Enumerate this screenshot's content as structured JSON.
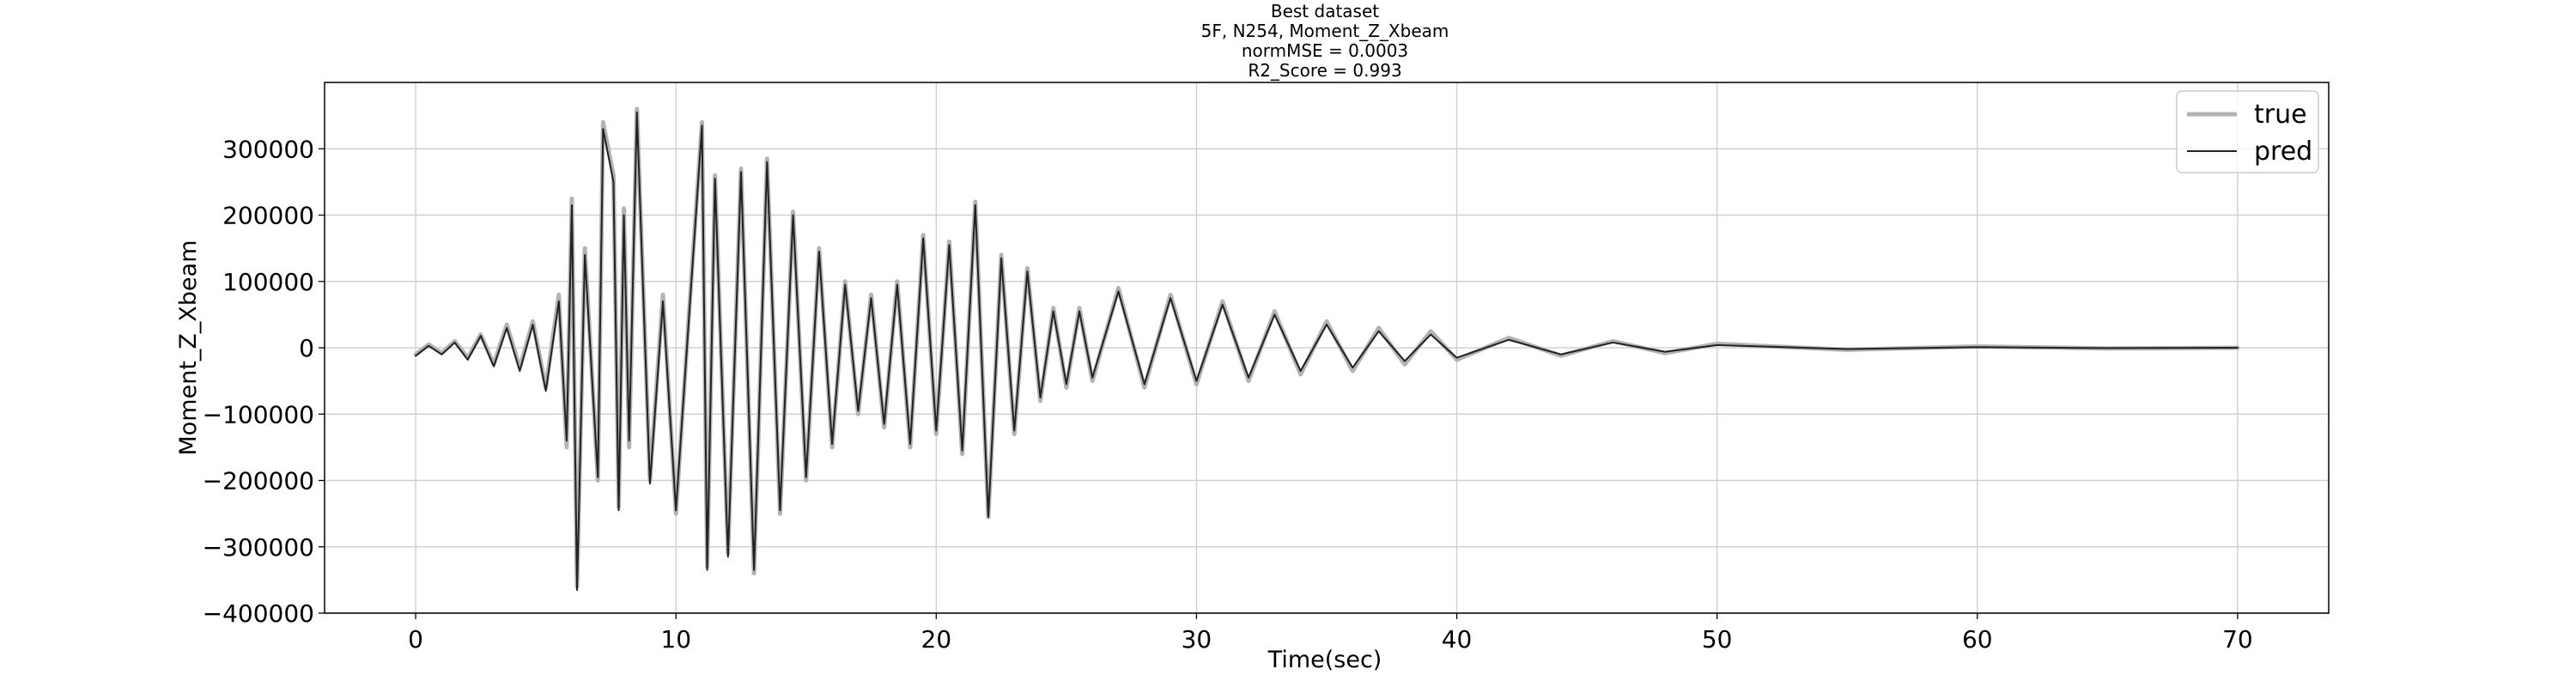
{
  "chart_data": {
    "type": "line",
    "title_lines": [
      "Best dataset",
      "5F, N254, Moment_Z_Xbeam",
      "normMSE = 0.0003",
      "R2_Score = 0.993"
    ],
    "xlabel": "Time(sec)",
    "ylabel": "Moment_Z_Xbeam",
    "xlim": [
      -3.5,
      73.5
    ],
    "ylim": [
      -400000,
      400000
    ],
    "xticks": [
      0,
      10,
      20,
      30,
      40,
      50,
      60,
      70
    ],
    "yticks": [
      -400000,
      -300000,
      -200000,
      -100000,
      0,
      100000,
      200000,
      300000
    ],
    "ytick_labels": [
      "−400000",
      "−300000",
      "−200000",
      "−100000",
      "0",
      "100000",
      "200000",
      "300000"
    ],
    "grid": true,
    "legend_position": "upper right",
    "series": [
      {
        "name": "true",
        "color": "#b3b3b3",
        "style": "thick",
        "x": [
          0,
          0.5,
          1,
          1.5,
          2,
          2.5,
          3,
          3.5,
          4,
          4.5,
          5,
          5.5,
          5.8,
          6.0,
          6.2,
          6.5,
          7.0,
          7.2,
          7.6,
          7.8,
          8.0,
          8.2,
          8.5,
          9.0,
          9.5,
          10.0,
          10.5,
          11.0,
          11.2,
          11.5,
          12.0,
          12.5,
          13.0,
          13.5,
          14.0,
          14.5,
          15.0,
          15.5,
          16.0,
          16.5,
          17.0,
          17.5,
          18.0,
          18.5,
          19.0,
          19.5,
          20.0,
          20.5,
          21.0,
          21.5,
          22.0,
          22.5,
          23.0,
          23.5,
          24.0,
          24.5,
          25.0,
          25.5,
          26.0,
          27.0,
          28.0,
          29.0,
          30.0,
          31.0,
          32.0,
          33.0,
          34.0,
          35.0,
          36.0,
          37.0,
          38.0,
          39.0,
          40.0,
          42.0,
          44.0,
          46.0,
          48.0,
          50.0,
          55.0,
          60.0,
          65.0,
          70.0
        ],
        "y": [
          -10000,
          5000,
          -8000,
          10000,
          -15000,
          20000,
          -25000,
          35000,
          -30000,
          40000,
          -60000,
          80000,
          -150000,
          225000,
          -360000,
          150000,
          -200000,
          340000,
          260000,
          -240000,
          210000,
          -150000,
          360000,
          -200000,
          80000,
          -250000,
          50000,
          340000,
          -330000,
          260000,
          -310000,
          270000,
          -340000,
          285000,
          -250000,
          205000,
          -200000,
          150000,
          -150000,
          100000,
          -100000,
          80000,
          -120000,
          100000,
          -150000,
          170000,
          -130000,
          160000,
          -160000,
          220000,
          -255000,
          140000,
          -130000,
          120000,
          -80000,
          60000,
          -60000,
          60000,
          -50000,
          90000,
          -60000,
          80000,
          -55000,
          70000,
          -50000,
          55000,
          -40000,
          40000,
          -35000,
          30000,
          -25000,
          25000,
          -18000,
          15000,
          -12000,
          10000,
          -8000,
          6000,
          -3000,
          2000,
          -1000,
          0
        ]
      },
      {
        "name": "pred",
        "color": "#222222",
        "style": "thin",
        "x": [
          0,
          0.5,
          1,
          1.5,
          2,
          2.5,
          3,
          3.5,
          4,
          4.5,
          5,
          5.5,
          5.8,
          6.0,
          6.2,
          6.5,
          7.0,
          7.2,
          7.6,
          7.8,
          8.0,
          8.2,
          8.5,
          9.0,
          9.5,
          10.0,
          10.5,
          11.0,
          11.2,
          11.5,
          12.0,
          12.5,
          13.0,
          13.5,
          14.0,
          14.5,
          15.0,
          15.5,
          16.0,
          16.5,
          17.0,
          17.5,
          18.0,
          18.5,
          19.0,
          19.5,
          20.0,
          20.5,
          21.0,
          21.5,
          22.0,
          22.5,
          23.0,
          23.5,
          24.0,
          24.5,
          25.0,
          25.5,
          26.0,
          27.0,
          28.0,
          29.0,
          30.0,
          31.0,
          32.0,
          33.0,
          34.0,
          35.0,
          36.0,
          37.0,
          38.0,
          39.0,
          40.0,
          42.0,
          44.0,
          46.0,
          48.0,
          50.0,
          55.0,
          60.0,
          65.0,
          70.0
        ],
        "y": [
          -12000,
          3000,
          -10000,
          8000,
          -18000,
          18000,
          -28000,
          30000,
          -35000,
          35000,
          -65000,
          70000,
          -140000,
          215000,
          -365000,
          140000,
          -195000,
          330000,
          250000,
          -245000,
          200000,
          -140000,
          355000,
          -205000,
          70000,
          -245000,
          45000,
          335000,
          -335000,
          255000,
          -315000,
          265000,
          -335000,
          280000,
          -245000,
          200000,
          -195000,
          145000,
          -145000,
          95000,
          -95000,
          75000,
          -115000,
          95000,
          -145000,
          165000,
          -125000,
          155000,
          -155000,
          215000,
          -255000,
          135000,
          -125000,
          115000,
          -75000,
          55000,
          -55000,
          55000,
          -45000,
          85000,
          -55000,
          75000,
          -50000,
          65000,
          -45000,
          50000,
          -35000,
          35000,
          -30000,
          25000,
          -20000,
          20000,
          -15000,
          12000,
          -10000,
          8000,
          -6000,
          4000,
          -2000,
          1000,
          -500,
          0
        ]
      }
    ]
  }
}
